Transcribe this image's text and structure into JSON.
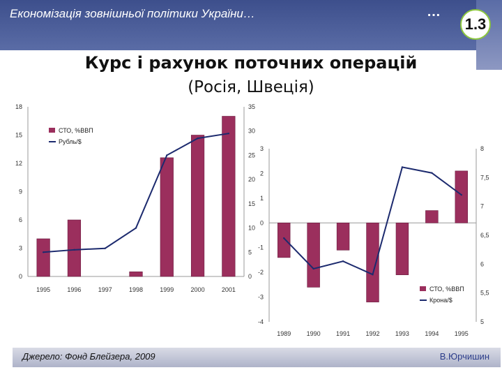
{
  "header": {
    "title": "Економізація зовнішньої політики України…",
    "dots": "…",
    "badge": "1.3"
  },
  "slide": {
    "title": "Курс і рахунок поточних операцій",
    "subtitle": "(Росія, Швеція)"
  },
  "footer": {
    "source": "Джерело: Фонд Блейзера, 2009",
    "author": "В.Юрчишин"
  },
  "colors": {
    "bar": "#9b2f5d",
    "line": "#1c2a6e",
    "header": "#4a5c99"
  },
  "chart_data": [
    {
      "type": "bar",
      "categories": [
        "1995",
        "1996",
        "1997",
        "1998",
        "1999",
        "2000",
        "2001"
      ],
      "left_ticks": [
        "0",
        "3",
        "6",
        "9",
        "12",
        "15",
        "18"
      ],
      "right_ticks": [
        "0",
        "5",
        "10",
        "15",
        "20",
        "25",
        "30",
        "35"
      ],
      "ylim_left": [
        0,
        18
      ],
      "ylim_right": [
        0,
        35
      ],
      "series": [
        {
          "name": "СТО, %ВВП",
          "kind": "bar",
          "axis": "left",
          "values": [
            4.0,
            6.0,
            null,
            0.5,
            12.6,
            15.0,
            17.0
          ]
        },
        {
          "name": "Рубль/$",
          "kind": "line",
          "axis": "right",
          "values": [
            5.0,
            5.5,
            5.8,
            10.0,
            25.0,
            28.5,
            29.5
          ]
        }
      ],
      "legend": "top-left"
    },
    {
      "type": "bar",
      "categories": [
        "1989",
        "1990",
        "1991",
        "1992",
        "1993",
        "1994",
        "1995"
      ],
      "left_ticks": [
        "-4",
        "-3",
        "-2",
        "-1",
        "0",
        "1",
        "2",
        "3"
      ],
      "right_ticks": [
        "5",
        "5,5",
        "6",
        "6,5",
        "7",
        "7,5",
        "8"
      ],
      "ylim_left": [
        -4,
        3
      ],
      "ylim_right": [
        5,
        8
      ],
      "series": [
        {
          "name": "СТО, %ВВП",
          "kind": "bar",
          "axis": "left",
          "values": [
            -1.4,
            -2.6,
            -1.1,
            -3.2,
            -2.1,
            0.5,
            2.1
          ]
        },
        {
          "name": "Крона/$",
          "kind": "line",
          "axis": "right",
          "values": [
            6.45,
            5.92,
            6.05,
            5.82,
            7.68,
            7.58,
            7.2
          ]
        }
      ],
      "legend": "bottom-right"
    }
  ]
}
